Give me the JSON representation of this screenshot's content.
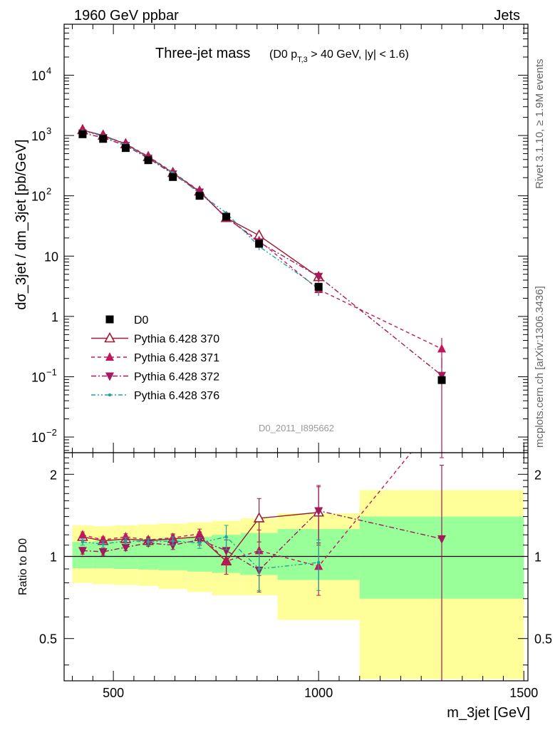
{
  "header": {
    "left": "1960 GeV ppbar",
    "right": "Jets"
  },
  "side_labels": {
    "rivet": "Rivet 3.1.10, ≥ 1.9M events",
    "mcplots": "mcplots.cern.ch [arXiv:1306.3436]"
  },
  "plot": {
    "title_main": "Three-jet mass",
    "title_sub_a": "(D0 p",
    "title_sub_sub": "T,3",
    "title_sub_b": " > 40 GeV, |y| < 1.6)",
    "watermark": "D0_2011_I895662",
    "ylabel": "dσ_3jet / dm_3jet [pb/GeV]",
    "ratio_ylabel": "Ratio to D0",
    "xlabel": "m_3jet [GeV]"
  },
  "ticks": {
    "x": [
      "500",
      "1000",
      "1500"
    ],
    "y_main": [
      {
        "base": "10",
        "exp": "−2",
        "v": 0.01
      },
      {
        "base": "10",
        "exp": "−1",
        "v": 0.1
      },
      {
        "base": "1",
        "exp": "",
        "v": 1
      },
      {
        "base": "10",
        "exp": "",
        "v": 10
      },
      {
        "base": "10",
        "exp": "2",
        "v": 100
      },
      {
        "base": "10",
        "exp": "3",
        "v": 1000
      },
      {
        "base": "10",
        "exp": "4",
        "v": 10000
      }
    ],
    "y_ratio": [
      "0.5",
      "1",
      "2"
    ]
  },
  "colors": {
    "data": "#000000",
    "p370": "#9e1b32",
    "p371": "#c2185b",
    "p372": "#a3195b",
    "p376": "#20a39e",
    "band_outer": "#ffff99",
    "band_inner": "#99ff99"
  },
  "chart_data": [
    {
      "type": "scatter",
      "title": "Three-jet mass (D0 pT,3 > 40 GeV, |y| < 1.6)",
      "xlabel": "m_3jet [GeV]",
      "ylabel": "dσ_3jet / dm_3jet [pb/GeV]",
      "xlim": [
        380,
        1510
      ],
      "ylim": [
        0.0055,
        70000
      ],
      "yscale": "log",
      "legend_placement": "lower-left",
      "x": [
        425,
        475,
        530,
        585,
        645,
        710,
        775,
        855,
        1000,
        1300
      ],
      "series": [
        {
          "name": "D0",
          "style": "markers",
          "values": [
            1050,
            880,
            620,
            390,
            205,
            100,
            45,
            16,
            3.1,
            0.088
          ],
          "errors": [
            0,
            0,
            0,
            0,
            0,
            0,
            0,
            0,
            0.3,
            0.01
          ]
        },
        {
          "name": "Pythia 6.428 370",
          "style": "solid",
          "marker": "open-triangle-up",
          "values": [
            1230,
            1000,
            720,
            440,
            240,
            118,
            43,
            22,
            4.5,
            null
          ],
          "errors": [
            20,
            15,
            10,
            8,
            5,
            3,
            2,
            2.5,
            0.8,
            null
          ]
        },
        {
          "name": "Pythia 6.428 371",
          "style": "dashed",
          "marker": "filled-triangle-up",
          "values": [
            1220,
            1000,
            730,
            450,
            245,
            120,
            43,
            18,
            2.8,
            0.29
          ],
          "errors": [
            20,
            15,
            10,
            8,
            5,
            3,
            2,
            2,
            0.6,
            0.15
          ]
        },
        {
          "name": "Pythia 6.428 372",
          "style": "dashdot",
          "marker": "filled-triangle-down",
          "values": [
            1100,
            920,
            680,
            420,
            230,
            115,
            44,
            17,
            4.6,
            0.105
          ],
          "errors": [
            20,
            15,
            10,
            8,
            5,
            3,
            2,
            2,
            0.8,
            0.1
          ]
        },
        {
          "name": "Pythia 6.428 376",
          "style": "dashdotdot",
          "marker": "dot",
          "values": [
            1180,
            980,
            700,
            430,
            240,
            110,
            52,
            14.5,
            2.95,
            null
          ],
          "errors": [
            20,
            15,
            10,
            8,
            5,
            3,
            4,
            2,
            0.7,
            null
          ]
        }
      ]
    },
    {
      "type": "line",
      "title": "",
      "xlabel": "m_3jet [GeV]",
      "ylabel": "Ratio to D0",
      "xlim": [
        380,
        1510
      ],
      "ylim": [
        0.35,
        2.4
      ],
      "yscale": "log",
      "reference_line": 1,
      "bin_edges": [
        400,
        450,
        500,
        560,
        610,
        680,
        740,
        810,
        900,
        1100,
        1500
      ],
      "band_outer": [
        [
          0.8,
          1.3
        ],
        [
          0.79,
          1.29
        ],
        [
          0.785,
          1.3
        ],
        [
          0.78,
          1.31
        ],
        [
          0.76,
          1.32
        ],
        [
          0.74,
          1.335
        ],
        [
          0.72,
          1.35
        ],
        [
          0.72,
          1.38
        ],
        [
          0.585,
          1.44
        ],
        [
          0.355,
          1.75
        ]
      ],
      "band_inner": [
        [
          0.905,
          1.13
        ],
        [
          0.905,
          1.14
        ],
        [
          0.9,
          1.15
        ],
        [
          0.895,
          1.16
        ],
        [
          0.89,
          1.17
        ],
        [
          0.88,
          1.18
        ],
        [
          0.87,
          1.2
        ],
        [
          0.855,
          1.22
        ],
        [
          0.82,
          1.26
        ],
        [
          0.7,
          1.4
        ]
      ],
      "x": [
        425,
        475,
        530,
        585,
        645,
        710,
        775,
        855,
        1000,
        1300
      ],
      "series": [
        {
          "name": "Pythia 6.428 370",
          "values": [
            1.18,
            1.14,
            1.16,
            1.14,
            1.16,
            1.18,
            0.96,
            1.38,
            1.45,
            null
          ],
          "errors": [
            0.03,
            0.03,
            0.03,
            0.03,
            0.04,
            0.05,
            0.1,
            0.25,
            0.35,
            null
          ]
        },
        {
          "name": "Pythia 6.428 371",
          "values": [
            1.2,
            1.15,
            1.18,
            1.15,
            1.17,
            1.21,
            0.96,
            1.05,
            0.92,
            3.3
          ],
          "errors": [
            0.03,
            0.03,
            0.03,
            0.03,
            0.04,
            0.05,
            0.1,
            0.2,
            0.2,
            1.0
          ]
        },
        {
          "name": "Pythia 6.428 372",
          "values": [
            1.05,
            1.04,
            1.08,
            1.12,
            1.1,
            1.15,
            1.05,
            0.89,
            1.47,
            1.16
          ],
          "errors": [
            0.03,
            0.03,
            0.03,
            0.03,
            0.04,
            0.05,
            0.1,
            0.15,
            0.35,
            1.0
          ]
        },
        {
          "name": "Pythia 6.428 376",
          "values": [
            1.13,
            1.11,
            1.14,
            1.13,
            1.14,
            1.12,
            1.18,
            0.9,
            0.95,
            null
          ],
          "errors": [
            0.03,
            0.03,
            0.03,
            0.03,
            0.04,
            0.05,
            0.12,
            0.15,
            0.2,
            null
          ]
        }
      ]
    }
  ]
}
